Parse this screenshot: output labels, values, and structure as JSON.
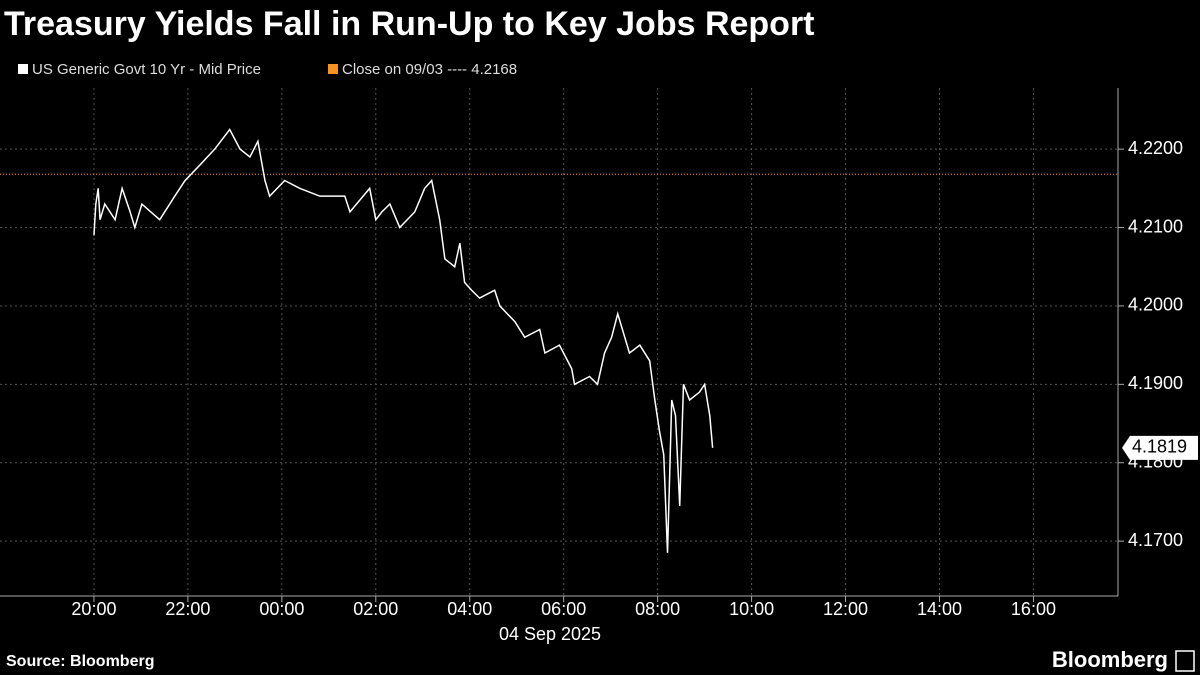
{
  "chart_data": {
    "type": "line",
    "title": "Treasury Yields Fall in Run-Up to Key Jobs Report",
    "x_axis_label": "04 Sep 2025",
    "source": "Source: Bloomberg",
    "brand": "Bloomberg",
    "series": [
      {
        "name": "US Generic Govt 10 Yr - Mid Price",
        "color": "#ffffff",
        "x": [
          20.0,
          20.04,
          20.09,
          20.13,
          20.23,
          20.45,
          20.6,
          20.77,
          20.87,
          21.02,
          21.4,
          21.72,
          21.94,
          22.26,
          22.57,
          22.89,
          23.11,
          23.32,
          23.49,
          23.64,
          23.74,
          24.06,
          24.38,
          24.81,
          25.34,
          25.45,
          25.87,
          26.0,
          26.13,
          26.3,
          26.51,
          26.83,
          27.04,
          27.19,
          27.36,
          27.47,
          27.68,
          27.79,
          27.89,
          28.04,
          28.21,
          28.53,
          28.64,
          28.96,
          29.17,
          29.49,
          29.6,
          29.91,
          30.17,
          30.23,
          30.55,
          30.72,
          30.87,
          31.02,
          31.15,
          31.3,
          31.4,
          31.62,
          31.83,
          31.94,
          32.04,
          32.13,
          32.21,
          32.3,
          32.38,
          32.47,
          32.55,
          32.68,
          32.89,
          33.0,
          33.11,
          33.17
        ],
        "values": [
          4.209,
          4.213,
          4.215,
          4.211,
          4.213,
          4.211,
          4.215,
          4.212,
          4.21,
          4.213,
          4.211,
          4.214,
          4.216,
          4.218,
          4.22,
          4.2225,
          4.22,
          4.219,
          4.221,
          4.216,
          4.214,
          4.216,
          4.215,
          4.214,
          4.214,
          4.212,
          4.215,
          4.211,
          4.212,
          4.213,
          4.21,
          4.212,
          4.215,
          4.216,
          4.211,
          4.206,
          4.205,
          4.208,
          4.203,
          4.202,
          4.201,
          4.202,
          4.2,
          4.198,
          4.196,
          4.197,
          4.194,
          4.195,
          4.192,
          4.19,
          4.191,
          4.19,
          4.194,
          4.196,
          4.199,
          4.196,
          4.194,
          4.195,
          4.193,
          4.188,
          4.184,
          4.181,
          4.1685,
          4.188,
          4.186,
          4.1745,
          4.19,
          4.188,
          4.189,
          4.19,
          4.186,
          4.1819
        ]
      }
    ],
    "reference_line": {
      "label": "Close on 09/03 ----",
      "value": 4.2168,
      "color": "#f7931e"
    },
    "xlim": [
      18,
      41.8
    ],
    "xticks": [
      {
        "value": 20,
        "label": "20:00"
      },
      {
        "value": 22,
        "label": "22:00"
      },
      {
        "value": 24,
        "label": "00:00"
      },
      {
        "value": 26,
        "label": "02:00"
      },
      {
        "value": 28,
        "label": "04:00"
      },
      {
        "value": 30,
        "label": "06:00"
      },
      {
        "value": 32,
        "label": "08:00"
      },
      {
        "value": 34,
        "label": "10:00"
      },
      {
        "value": 36,
        "label": "12:00"
      },
      {
        "value": 38,
        "label": "14:00"
      },
      {
        "value": 40,
        "label": "16:00"
      }
    ],
    "ylim": [
      4.163,
      4.2278
    ],
    "yticks": [
      {
        "value": 4.17,
        "label": "4.1700"
      },
      {
        "value": 4.18,
        "label": "4.1800"
      },
      {
        "value": 4.19,
        "label": "4.1900"
      },
      {
        "value": 4.2,
        "label": "4.2000"
      },
      {
        "value": 4.21,
        "label": "4.2100"
      },
      {
        "value": 4.22,
        "label": "4.2200"
      }
    ],
    "grid": true
  }
}
